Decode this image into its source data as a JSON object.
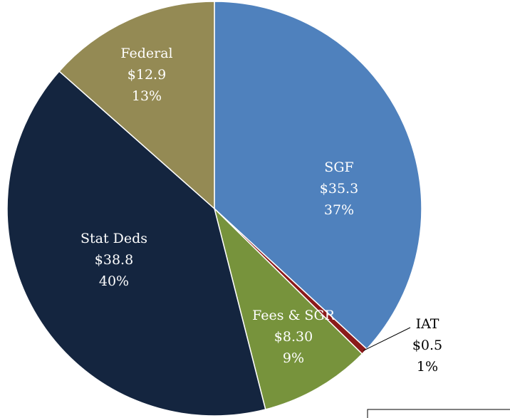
{
  "chart_data": {
    "type": "pie",
    "categories": [
      "SGF",
      "IAT",
      "Fees & SGR",
      "Stat Deds",
      "Federal"
    ],
    "values": [
      35.3,
      0.5,
      8.3,
      38.8,
      12.9
    ],
    "value_labels": [
      "$35.3",
      "$0.5",
      "$8.30",
      "$38.8",
      "$12.9"
    ],
    "percent_labels": [
      "37%",
      "1%",
      "9%",
      "40%",
      "13%"
    ],
    "colors": [
      "#4f81bd",
      "#8b1a1a",
      "#77933c",
      "#14253f",
      "#948a54"
    ]
  }
}
